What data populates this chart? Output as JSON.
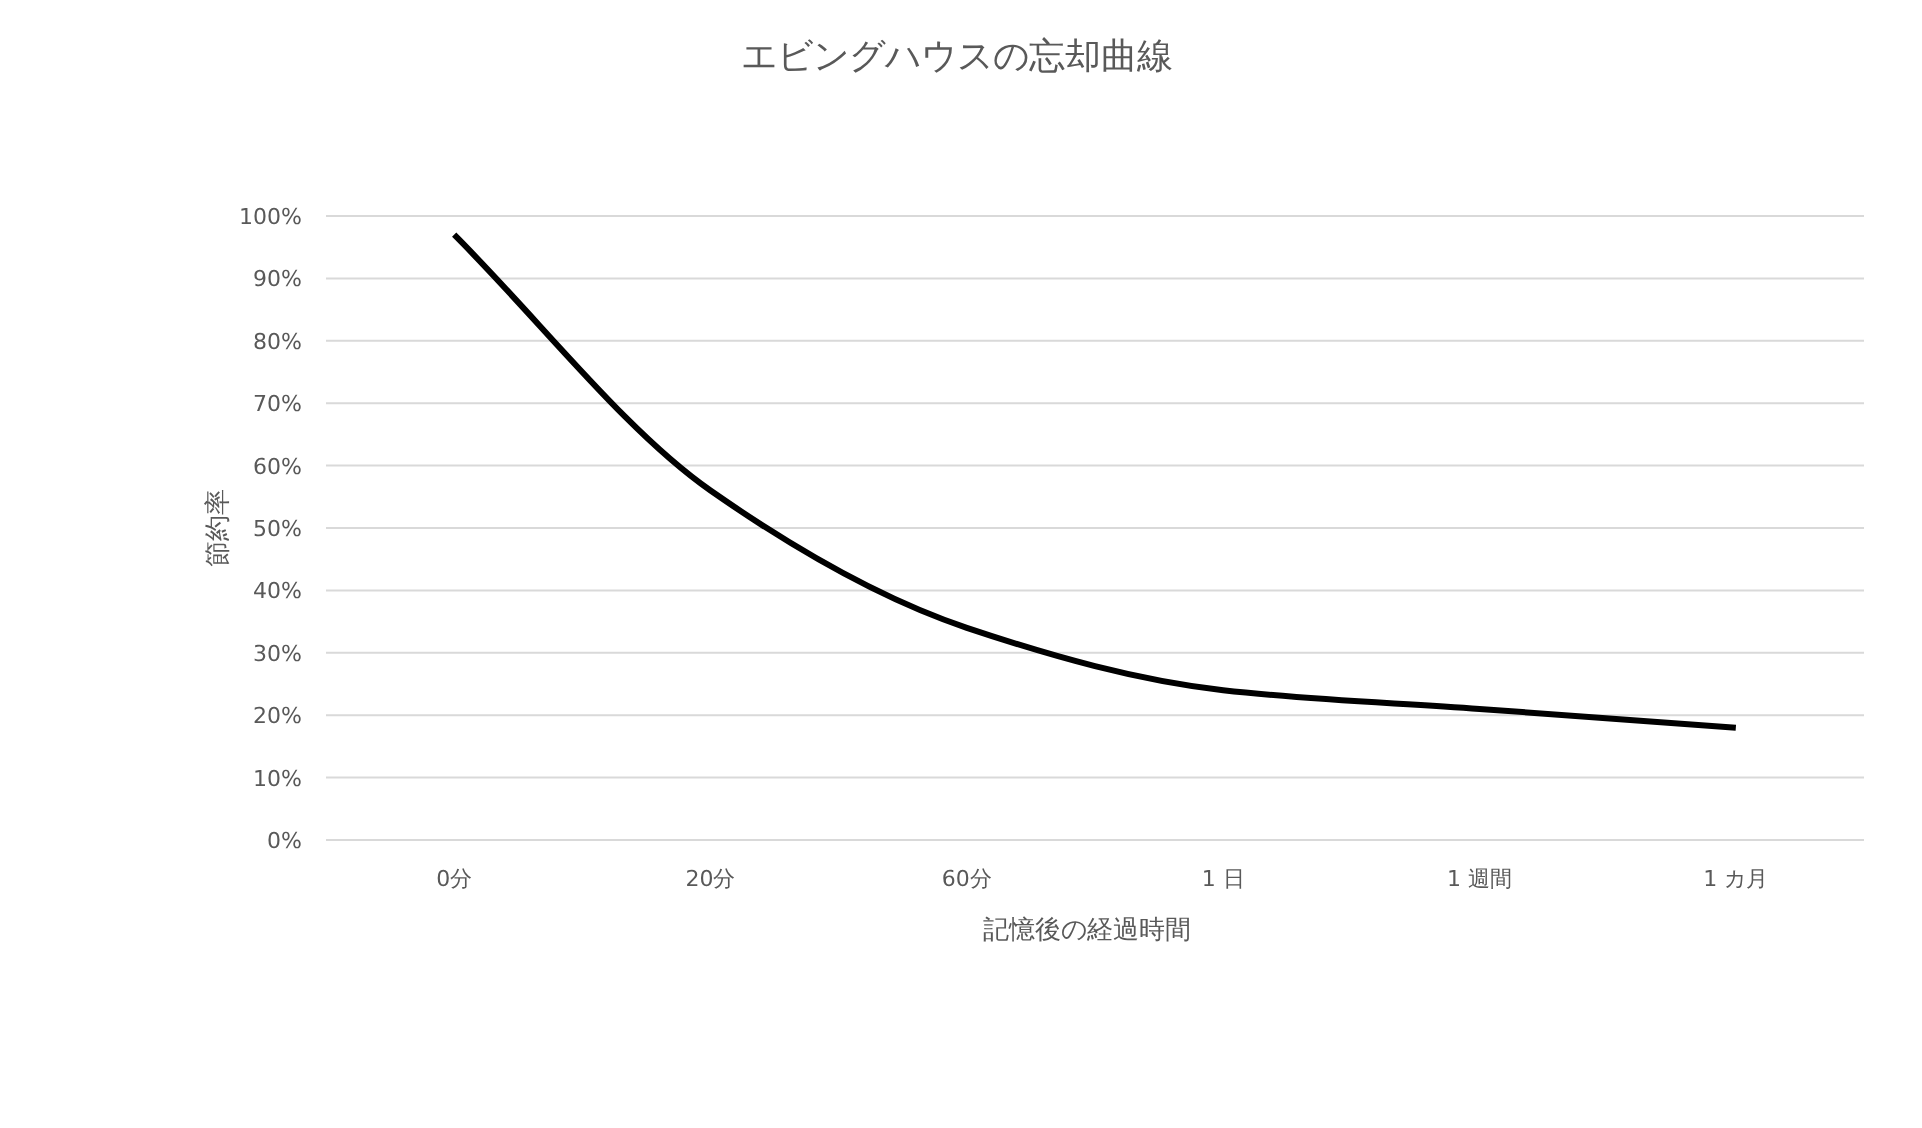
{
  "chart_data": {
    "type": "line",
    "title": "エビングハウスの忘却曲線",
    "xlabel": "記憶後の経過時間",
    "ylabel": "節約率",
    "categories": [
      "0分",
      "20分",
      "60分",
      "1 日",
      "1 週間",
      "1 カ月"
    ],
    "series": [
      {
        "color": "#000000",
        "values": [
          97,
          56,
          34,
          24,
          21,
          18
        ]
      }
    ],
    "ylim": [
      0,
      100
    ],
    "yticks": [
      {
        "value": 0,
        "label": "0%"
      },
      {
        "value": 10,
        "label": "10%"
      },
      {
        "value": 20,
        "label": "20%"
      },
      {
        "value": 30,
        "label": "30%"
      },
      {
        "value": 40,
        "label": "40%"
      },
      {
        "value": 50,
        "label": "50%"
      },
      {
        "value": 60,
        "label": "60%"
      },
      {
        "value": 70,
        "label": "70%"
      },
      {
        "value": 80,
        "label": "80%"
      },
      {
        "value": 90,
        "label": "90%"
      },
      {
        "value": 100,
        "label": "100%"
      }
    ],
    "grid": "y",
    "marker": "none",
    "line_style": "solid"
  }
}
